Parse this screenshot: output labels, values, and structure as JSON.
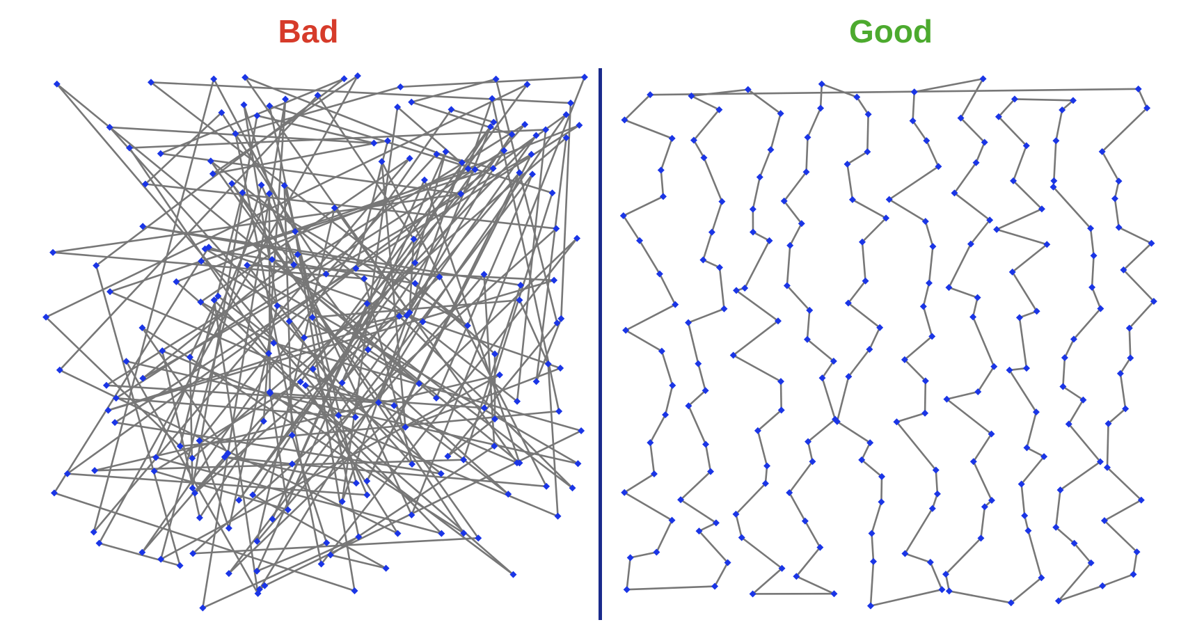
{
  "titles": {
    "bad": "Bad",
    "good": "Good"
  },
  "colors": {
    "bad_title": "#d63b2a",
    "good_title": "#4caa2e",
    "divider": "#1a2a8c",
    "edge": "#777777",
    "node": "#1a35e6"
  },
  "icons": {
    "node": "blue-diamond-node-icon"
  },
  "tour_bad": {
    "nodes": 200
  },
  "tour_good": {
    "nodes": 200
  }
}
